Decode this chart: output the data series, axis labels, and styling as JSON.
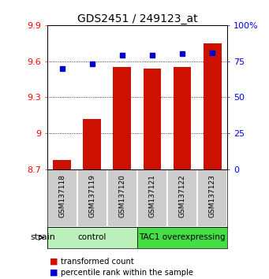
{
  "title": "GDS2451 / 249123_at",
  "samples": [
    "GSM137118",
    "GSM137119",
    "GSM137120",
    "GSM137121",
    "GSM137122",
    "GSM137123"
  ],
  "transformed_counts": [
    8.78,
    9.12,
    9.55,
    9.54,
    9.55,
    9.75
  ],
  "percentile_ranks": [
    70,
    73,
    79,
    79,
    80,
    81
  ],
  "bar_bottom": 8.7,
  "ylim_left": [
    8.7,
    9.9
  ],
  "ylim_right": [
    0,
    100
  ],
  "yticks_left": [
    8.7,
    9.0,
    9.3,
    9.6,
    9.9
  ],
  "ytick_labels_left": [
    "8.7",
    "9",
    "9.3",
    "9.6",
    "9.9"
  ],
  "yticks_right": [
    0,
    25,
    50,
    75,
    100
  ],
  "ytick_labels_right": [
    "0",
    "25",
    "50",
    "75",
    "100%"
  ],
  "groups": [
    {
      "label": "control",
      "indices": [
        0,
        1,
        2
      ],
      "color": "#bbf0bb"
    },
    {
      "label": "TAC1 overexpressing",
      "indices": [
        3,
        4,
        5
      ],
      "color": "#44dd44"
    }
  ],
  "bar_color": "#cc1100",
  "dot_color": "#0000cc",
  "bar_width": 0.6,
  "legend_items": [
    {
      "color": "#cc1100",
      "label": "transformed count"
    },
    {
      "color": "#0000cc",
      "label": "percentile rank within the sample"
    }
  ],
  "background_color": "#ffffff",
  "tick_area_color": "#cccccc"
}
